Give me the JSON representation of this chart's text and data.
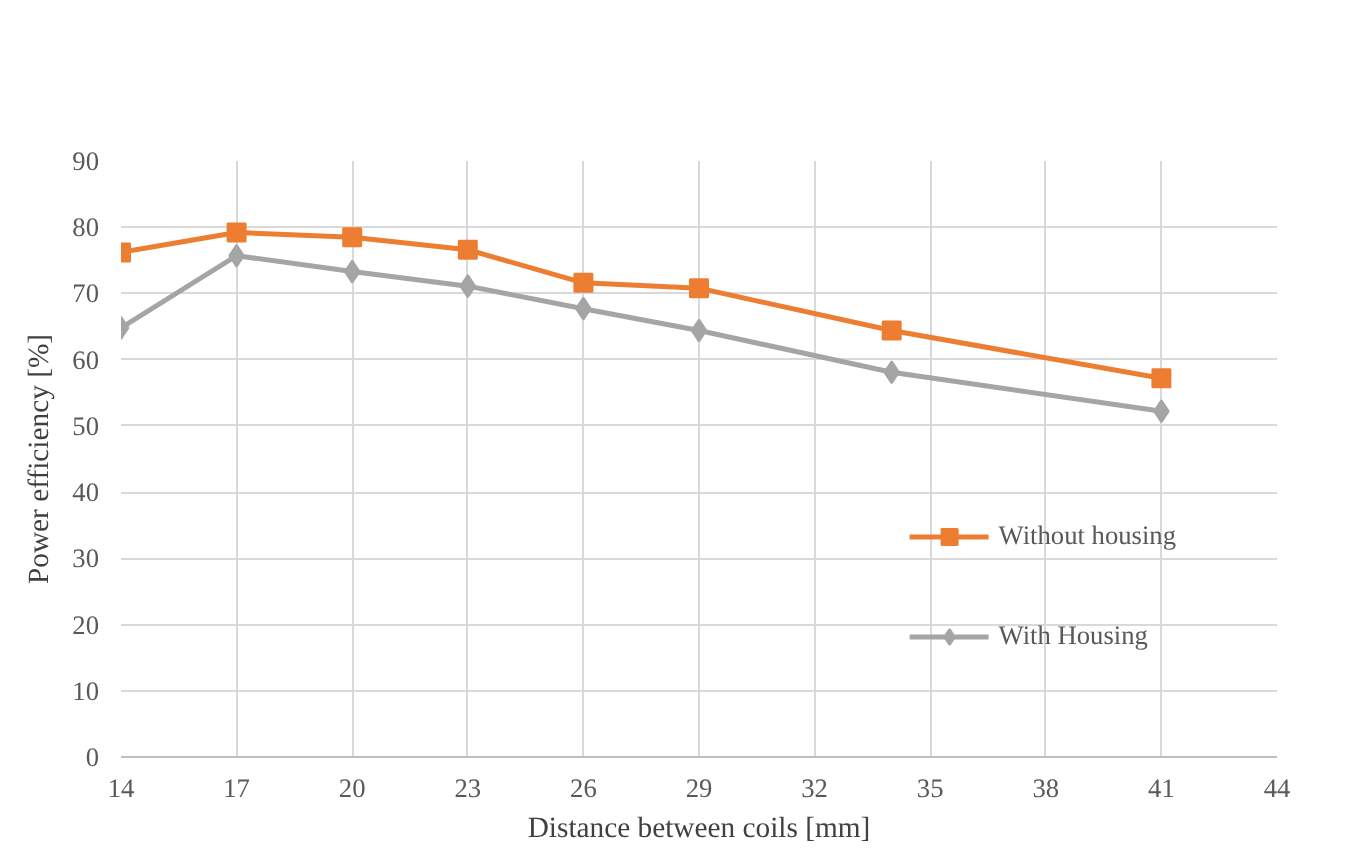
{
  "chart_data": {
    "type": "line",
    "xlabel": "Distance between coils [mm]",
    "ylabel": "Power efficiency [%]",
    "x": [
      14,
      17,
      20,
      23,
      26,
      29,
      34,
      41
    ],
    "series": [
      {
        "name": "Without housing",
        "color": "#ed7d31",
        "marker": "square",
        "values": [
          76.2,
          79.2,
          78.5,
          76.6,
          71.6,
          70.8,
          64.4,
          57.2
        ]
      },
      {
        "name": "With Housing",
        "color": "#a5a5a5",
        "marker": "diamond",
        "values": [
          64.8,
          75.7,
          73.3,
          71.1,
          67.7,
          64.4,
          58.1,
          52.2
        ]
      }
    ],
    "xlim": [
      14,
      44
    ],
    "xticks": [
      14,
      17,
      20,
      23,
      26,
      29,
      32,
      35,
      38,
      41,
      44
    ],
    "ylim": [
      0,
      90
    ],
    "yticks": [
      0,
      10,
      20,
      30,
      40,
      50,
      60,
      70,
      80,
      90
    ],
    "grid": true,
    "legend": "bottom right",
    "line_style": "solid"
  }
}
